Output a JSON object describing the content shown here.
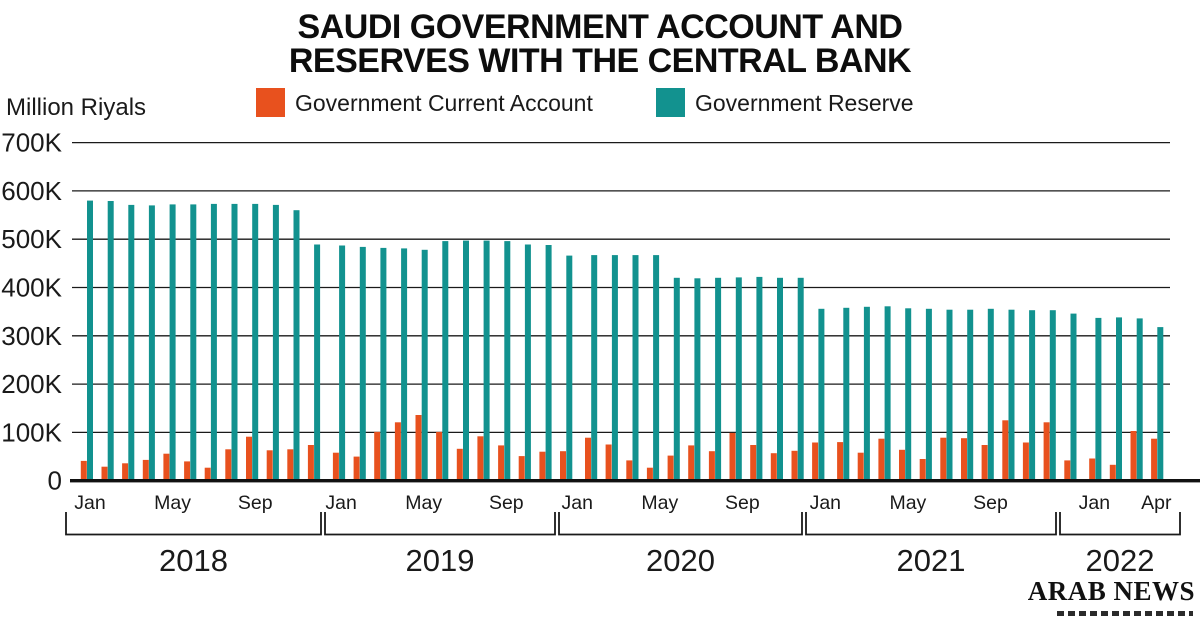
{
  "title": "SAUDI GOVERNMENT ACCOUNT AND\nRESERVES WITH THE CENTRAL BANK",
  "unit_label": "Million Riyals",
  "legend": [
    {
      "label": "Government Current Account",
      "color": "#E8511E"
    },
    {
      "label": "Government Reserve",
      "color": "#12928F"
    }
  ],
  "branding": {
    "logo_text": "ARAB NEWS"
  },
  "chart_data": {
    "type": "bar",
    "title": "Saudi government account and reserves with the central bank",
    "ylabel": "Million Riyals",
    "value_unit": "K (thousands of Million Riyals)",
    "ylim": [
      0,
      700
    ],
    "y_ticks": [
      "700K",
      "600K",
      "500K",
      "400K",
      "300K",
      "200K",
      "100K",
      "0"
    ],
    "grid": true,
    "legend_position": "top",
    "categories": [
      "Jan 2018",
      "Feb 2018",
      "Mar 2018",
      "Apr 2018",
      "May 2018",
      "Jun 2018",
      "Jul 2018",
      "Aug 2018",
      "Sep 2018",
      "Oct 2018",
      "Nov 2018",
      "Dec 2018",
      "Jan 2019",
      "Feb 2019",
      "Mar 2019",
      "Apr 2019",
      "May 2019",
      "Jun 2019",
      "Jul 2019",
      "Aug 2019",
      "Sep 2019",
      "Oct 2019",
      "Nov 2019",
      "Dec 2019",
      "Jan 2020",
      "Feb 2020",
      "Mar 2020",
      "Apr 2020",
      "May 2020",
      "Jun 2020",
      "Jul 2020",
      "Aug 2020",
      "Sep 2020",
      "Oct 2020",
      "Nov 2020",
      "Dec 2020",
      "Jan 2021",
      "Feb 2021",
      "Mar 2021",
      "Apr 2021",
      "May 2021",
      "Jun 2021",
      "Jul 2021",
      "Aug 2021",
      "Sep 2021",
      "Oct 2021",
      "Nov 2021",
      "Dec 2021",
      "Jan 2022",
      "Feb 2022",
      "Mar 2022",
      "Apr 2022"
    ],
    "series": [
      {
        "name": "Government Current Account",
        "color": "#E8511E",
        "values": [
          41,
          29,
          36,
          43,
          56,
          40,
          27,
          65,
          91,
          63,
          65,
          74,
          58,
          50,
          101,
          121,
          136,
          101,
          66,
          92,
          73,
          51,
          60,
          61,
          89,
          75,
          42,
          27,
          52,
          73,
          61,
          99,
          74,
          57,
          62,
          79,
          80,
          58,
          87,
          64,
          45,
          89,
          88,
          74,
          125,
          79,
          121,
          42,
          46,
          33,
          103,
          87
        ]
      },
      {
        "name": "Government Reserve",
        "color": "#12928F",
        "values": [
          580,
          579,
          571,
          570,
          572,
          572,
          573,
          573,
          573,
          571,
          560,
          489,
          487,
          484,
          482,
          481,
          478,
          496,
          497,
          497,
          496,
          489,
          488,
          466,
          467,
          467,
          467,
          467,
          420,
          419,
          420,
          421,
          422,
          420,
          420,
          356,
          358,
          360,
          361,
          357,
          356,
          354,
          354,
          356,
          354,
          353,
          353,
          346,
          337,
          338,
          336,
          318
        ]
      }
    ],
    "x_ticks": [
      {
        "year": "2018",
        "ticks": [
          [
            "Jan",
            0
          ],
          [
            "May",
            4
          ],
          [
            "Sep",
            8
          ]
        ]
      },
      {
        "year": "2019",
        "ticks": [
          [
            "Jan",
            0
          ],
          [
            "May",
            4
          ],
          [
            "Sep",
            8
          ]
        ]
      },
      {
        "year": "2020",
        "ticks": [
          [
            "Jan",
            0
          ],
          [
            "May",
            4
          ],
          [
            "Sep",
            8
          ]
        ]
      },
      {
        "year": "2021",
        "ticks": [
          [
            "Jan",
            0
          ],
          [
            "May",
            4
          ],
          [
            "Sep",
            8
          ]
        ]
      },
      {
        "year": "2022",
        "ticks": [
          [
            "Jan",
            0
          ],
          [
            "Apr",
            3
          ]
        ]
      }
    ],
    "year_groups": [
      {
        "label": "2018",
        "months": 12
      },
      {
        "label": "2019",
        "months": 12
      },
      {
        "label": "2020",
        "months": 12
      },
      {
        "label": "2021",
        "months": 12
      },
      {
        "label": "2022",
        "months": 4
      }
    ]
  }
}
